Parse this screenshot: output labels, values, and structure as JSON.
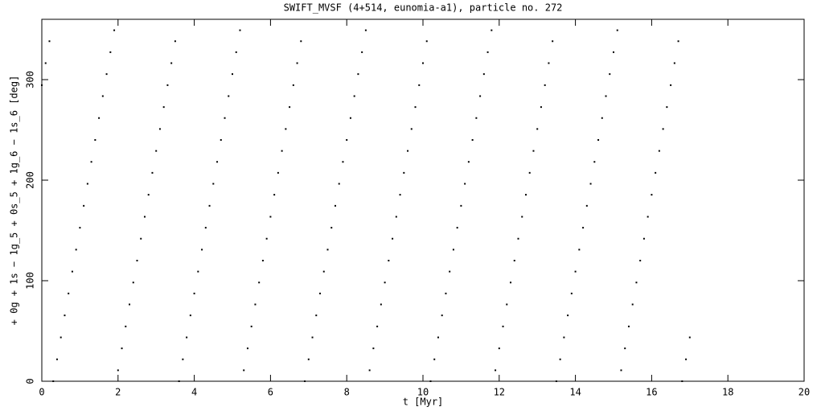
{
  "chart_data": {
    "type": "scatter",
    "title": "SWIFT_MVSF (4+514, eunomia-a1), particle no. 272",
    "xlabel": "t [Myr]",
    "ylabel": "+ 0g + 1s − 1g_5 + 0s_5 + 1g_6 − 1s_6 [deg]",
    "color": "#000000",
    "xlim": [
      0,
      20
    ],
    "xticks": [
      0,
      2,
      4,
      6,
      8,
      10,
      12,
      14,
      16,
      18,
      20
    ],
    "ylim": [
      0,
      360
    ],
    "yticks": [
      0,
      100,
      200,
      300
    ],
    "x": [
      0,
      0.1,
      0.2,
      0.3,
      0.4,
      0.5,
      0.6,
      0.7,
      0.8,
      0.9,
      1,
      1.1,
      1.2,
      1.3,
      1.4,
      1.5,
      1.6,
      1.7,
      1.8,
      1.9,
      2,
      2.1,
      2.2,
      2.3,
      2.4,
      2.5,
      2.6,
      2.7,
      2.8,
      2.9,
      3,
      3.1,
      3.2,
      3.3,
      3.4,
      3.5,
      3.6,
      3.7,
      3.8,
      3.9,
      4,
      4.1,
      4.2,
      4.3,
      4.4,
      4.5,
      4.6,
      4.7,
      4.8,
      4.9,
      5,
      5.1,
      5.2,
      5.3,
      5.4,
      5.5,
      5.6,
      5.7,
      5.8,
      5.9,
      6,
      6.1,
      6.2,
      6.3,
      6.4,
      6.5,
      6.6,
      6.7,
      6.8,
      6.9,
      7,
      7.1,
      7.2,
      7.3,
      7.4,
      7.5,
      7.6,
      7.7,
      7.8,
      7.9,
      8,
      8.1,
      8.2,
      8.3,
      8.4,
      8.5,
      8.6,
      8.7,
      8.8,
      8.9,
      9,
      9.1,
      9.2,
      9.3,
      9.4,
      9.5,
      9.6,
      9.7,
      9.8,
      9.9,
      10,
      10.1,
      10.2,
      10.3,
      10.4,
      10.5,
      10.6,
      10.7,
      10.8,
      10.9,
      11,
      11.1,
      11.2,
      11.3,
      11.4,
      11.5,
      11.6,
      11.7,
      11.8,
      11.9,
      12,
      12.1,
      12.2,
      12.3,
      12.4,
      12.5,
      12.6,
      12.7,
      12.8,
      12.9,
      13,
      13.1,
      13.2,
      13.3,
      13.4,
      13.5,
      13.6,
      13.7,
      13.8,
      13.9,
      14,
      14.1,
      14.2,
      14.3,
      14.4,
      14.5,
      14.6,
      14.7,
      14.8,
      14.9,
      15,
      15.1,
      15.2,
      15.3,
      15.4,
      15.5,
      15.6,
      15.7,
      15.8,
      15.9,
      16,
      16.1,
      16.2,
      16.3,
      16.4,
      16.5,
      16.6,
      16.7,
      16.8,
      16.9,
      17
    ],
    "values": [
      294.5,
      316.4,
      338.2,
      0,
      21.8,
      43.6,
      65.5,
      87.3,
      109.1,
      130.9,
      152.7,
      174.5,
      196.4,
      218.2,
      240,
      261.8,
      283.6,
      305.5,
      327.3,
      349.1,
      10.9,
      32.7,
      54.5,
      76.4,
      98.2,
      120,
      141.8,
      163.6,
      185.5,
      207.3,
      229.1,
      250.9,
      272.7,
      294.5,
      316.4,
      338.2,
      0,
      21.8,
      43.6,
      65.5,
      87.3,
      109.1,
      130.9,
      152.7,
      174.5,
      196.4,
      218.2,
      240,
      261.8,
      283.6,
      305.5,
      327.3,
      349.1,
      10.9,
      32.7,
      54.5,
      76.4,
      98.2,
      120,
      141.8,
      163.6,
      185.5,
      207.3,
      229.1,
      250.9,
      272.7,
      294.5,
      316.4,
      338.2,
      0,
      21.8,
      43.6,
      65.5,
      87.3,
      109.1,
      130.9,
      152.7,
      174.5,
      196.4,
      218.2,
      240,
      261.8,
      283.6,
      305.5,
      327.3,
      349.1,
      10.9,
      32.7,
      54.5,
      76.4,
      98.2,
      120,
      141.8,
      163.6,
      185.5,
      207.3,
      229.1,
      250.9,
      272.7,
      294.5,
      316.4,
      338.2,
      0,
      21.8,
      43.6,
      65.5,
      87.3,
      109.1,
      130.9,
      152.7,
      174.5,
      196.4,
      218.2,
      240,
      261.8,
      283.6,
      305.5,
      327.3,
      349.1,
      10.9,
      32.7,
      54.5,
      76.4,
      98.2,
      120,
      141.8,
      163.6,
      185.5,
      207.3,
      229.1,
      250.9,
      272.7,
      294.5,
      316.4,
      338.2,
      0,
      21.8,
      43.6,
      65.5,
      87.3,
      109.1,
      130.9,
      152.7,
      174.5,
      196.4,
      218.2,
      240,
      261.8,
      283.6,
      305.5,
      327.3,
      349.1,
      10.9,
      32.7,
      54.5,
      76.4,
      98.2,
      120,
      141.8,
      163.6,
      185.5,
      207.3,
      229.1,
      250.9,
      272.7,
      294.5,
      316.4,
      338.2,
      0,
      21.8,
      43.6
    ]
  }
}
